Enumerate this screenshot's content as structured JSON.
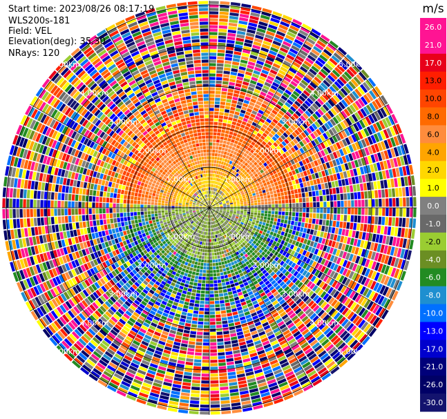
{
  "info": {
    "start_time": "Start time: 2023/08/26 08:17:19",
    "site": "WLS200s-181",
    "field": "Field: VEL",
    "elevation": "Elevation(deg): 35.30",
    "nrays": "NRays: 120"
  },
  "colorbar": {
    "unit": "m/s",
    "ticks": [
      "26.0",
      "21.0",
      "17.0",
      "13.0",
      "10.0",
      "8.0",
      "6.0",
      "4.0",
      "2.0",
      "1.0",
      "0.0",
      "-1.0",
      "-2.0",
      "-4.0",
      "-6.0",
      "-8.0",
      "-10.0",
      "-13.0",
      "-17.0",
      "-21.0",
      "-26.0",
      "-30.0"
    ],
    "colors": [
      "#ff1493",
      "#ff1493",
      "#e8001a",
      "#ff1e00",
      "#ff4500",
      "#ff6a00",
      "#ff8c3c",
      "#ffa500",
      "#ffd700",
      "#ffff00",
      "#808080",
      "#696969",
      "#9acd32",
      "#6b8e23",
      "#228b22",
      "#1e8fd0",
      "#0070ff",
      "#0000ff",
      "#0000cd",
      "#00007a",
      "#000066",
      "#13136e"
    ]
  },
  "chart_data": {
    "type": "polar",
    "field": "VEL",
    "nrays": 120,
    "range_rings_km": [
      1.0,
      2.0,
      3.0,
      4.0,
      5.0
    ],
    "ring_labels": [
      "1.00km",
      "2.00km",
      "3.00km",
      "4.00km",
      "5.00km"
    ],
    "spoke_angles_deg": [
      0,
      30,
      60,
      90,
      120,
      150,
      180,
      210,
      240,
      270,
      300,
      330
    ],
    "velocity_pattern": {
      "north_half_near": "positive (2.0 to 13.0 m/s)",
      "south_half_near": "negative (-1.0 to -8.0 m/s)",
      "center": "near 0.0 m/s",
      "outer_ranges": "noise, all colors"
    }
  }
}
